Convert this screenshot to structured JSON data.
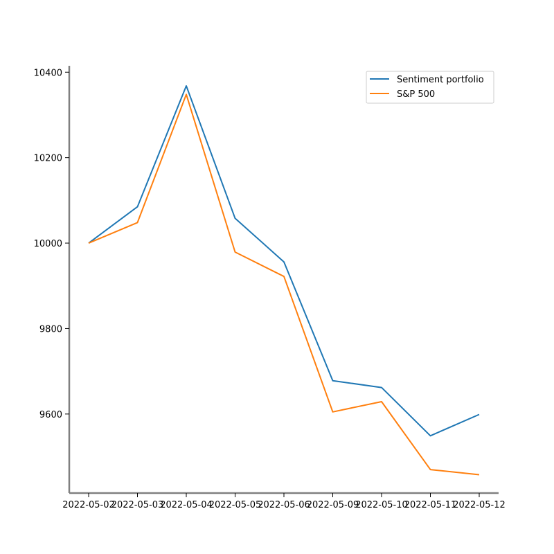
{
  "chart_data": {
    "type": "line",
    "title": "",
    "xlabel": "",
    "ylabel": "",
    "x": [
      "2022-05-02",
      "2022-05-03",
      "2022-05-04",
      "2022-05-05",
      "2022-05-06",
      "2022-05-09",
      "2022-05-10",
      "2022-05-11",
      "2022-05-12"
    ],
    "x_tick_labels": [
      "2022-05-02",
      "2022-05-03",
      "2022-05-04",
      "2022-05-05",
      "2022-05-06",
      "2022-05-09",
      "2022-05-10",
      "2022-05-11",
      "2022-05-12"
    ],
    "series": [
      {
        "name": "Sentiment portfolio",
        "color": "#1f77b4",
        "values": [
          10000,
          10085,
          10368,
          10058,
          9956,
          9678,
          9662,
          9549,
          9599
        ]
      },
      {
        "name": "S&P 500",
        "color": "#ff7f0e",
        "values": [
          10000,
          10048,
          10348,
          9979,
          9922,
          9605,
          9629,
          9470,
          9458
        ]
      }
    ],
    "y_ticks": [
      9600,
      9800,
      10000,
      10200,
      10400
    ],
    "ylim": [
      9415,
      10415
    ],
    "grid": false,
    "legend": {
      "position": "top-right"
    }
  }
}
